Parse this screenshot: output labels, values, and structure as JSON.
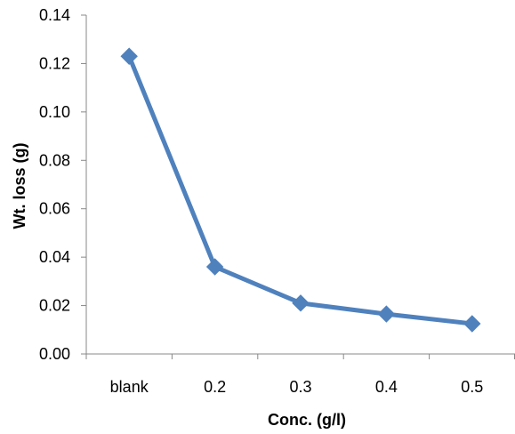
{
  "chart_data": {
    "type": "line",
    "title": "",
    "xlabel": "Conc. (g/l)",
    "ylabel": "Wt. loss (g)",
    "categories": [
      "blank",
      "0.2",
      "0.3",
      "0.4",
      "0.5"
    ],
    "series": [
      {
        "values": [
          0.123,
          0.036,
          0.021,
          0.0165,
          0.0125
        ]
      }
    ],
    "ylim": [
      0,
      0.14
    ],
    "yticks": [
      "0.00",
      "0.02",
      "0.04",
      "0.06",
      "0.08",
      "0.10",
      "0.12",
      "0.14"
    ],
    "grid": false,
    "legend": "none",
    "series_color": "#4F81BD",
    "marker": "diamond"
  }
}
